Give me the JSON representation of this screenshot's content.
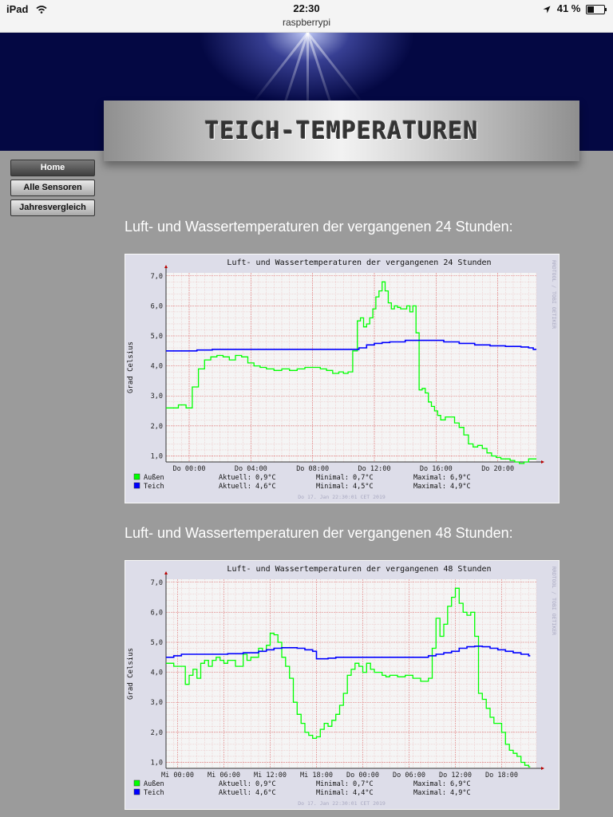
{
  "statusbar": {
    "device": "iPad",
    "time": "22:30",
    "url": "raspberrypi",
    "battery": "41 %",
    "battery_level": 0.41
  },
  "site": {
    "title": "TEICH-TEMPERATUREN"
  },
  "nav": [
    {
      "label": "Home",
      "active": true
    },
    {
      "label": "Alle Sensoren",
      "active": false
    },
    {
      "label": "Jahresvergleich",
      "active": false
    }
  ],
  "sections": [
    {
      "heading": "Luft- und Wassertemperaturen der vergangenen 24 Stunden:"
    },
    {
      "heading": "Luft- und Wassertemperaturen der vergangenen 48 Stunden:"
    }
  ],
  "chart_data": [
    {
      "type": "line",
      "title": "Luft- und Wassertemperaturen der vergangenen 24 Stunden",
      "ylabel": "Grad Celsius",
      "side_text": "RRDTOOL / TOBI OETIKER",
      "ylim": [
        0.8,
        7.1
      ],
      "yticks": [
        "1,0",
        "2,0",
        "3,0",
        "4,0",
        "5,0",
        "6,0",
        "7,0"
      ],
      "xlim": [
        22.5,
        46.5
      ],
      "xticks": [
        {
          "x": 24,
          "label": "Do 00:00"
        },
        {
          "x": 28,
          "label": "Do 04:00"
        },
        {
          "x": 32,
          "label": "Do 08:00"
        },
        {
          "x": 36,
          "label": "Do 12:00"
        },
        {
          "x": 40,
          "label": "Do 16:00"
        },
        {
          "x": 44,
          "label": "Do 20:00"
        }
      ],
      "grid": true,
      "series": [
        {
          "name": "Außen",
          "color": "#00ff00",
          "x": [
            22.5,
            23.3,
            23.6,
            23.8,
            24.2,
            24.6,
            25.0,
            25.4,
            25.8,
            26.2,
            26.6,
            27.0,
            27.4,
            27.8,
            28.2,
            28.6,
            29.0,
            29.5,
            30.0,
            30.5,
            31.0,
            31.5,
            32.0,
            32.5,
            32.9,
            33.3,
            33.7,
            34.0,
            34.3,
            34.6,
            34.9,
            35.1,
            35.3,
            35.5,
            35.7,
            35.9,
            36.1,
            36.3,
            36.5,
            36.7,
            36.9,
            37.1,
            37.3,
            37.5,
            37.7,
            37.9,
            38.1,
            38.3,
            38.5,
            38.7,
            38.9,
            39.1,
            39.3,
            39.5,
            39.7,
            39.9,
            40.1,
            40.3,
            40.6,
            40.9,
            41.2,
            41.5,
            41.8,
            42.1,
            42.4,
            42.7,
            43.0,
            43.3,
            43.6,
            43.9,
            44.2,
            44.5,
            44.8,
            45.1,
            45.4,
            45.7,
            46.0,
            46.3
          ],
          "y": [
            2.6,
            2.7,
            2.7,
            2.6,
            3.3,
            3.9,
            4.2,
            4.3,
            4.35,
            4.3,
            4.2,
            4.35,
            4.3,
            4.1,
            4.0,
            3.95,
            3.9,
            3.85,
            3.9,
            3.85,
            3.9,
            3.95,
            3.95,
            3.9,
            3.85,
            3.75,
            3.8,
            3.75,
            3.8,
            4.5,
            5.5,
            5.6,
            5.3,
            5.4,
            5.6,
            5.9,
            6.3,
            6.5,
            6.8,
            6.5,
            6.1,
            5.9,
            6.0,
            5.95,
            5.9,
            5.9,
            6.0,
            5.8,
            6.0,
            5.1,
            3.2,
            3.25,
            3.1,
            2.8,
            2.65,
            2.5,
            2.35,
            2.2,
            2.3,
            2.3,
            2.1,
            1.95,
            1.7,
            1.4,
            1.3,
            1.35,
            1.25,
            1.1,
            1.0,
            0.95,
            0.9,
            0.9,
            0.85,
            0.8,
            0.75,
            0.8,
            0.9,
            0.9
          ]
        },
        {
          "name": "Teich",
          "color": "#0000ff",
          "x": [
            22.5,
            23.5,
            24.5,
            25.5,
            27.0,
            29.0,
            31.0,
            33.0,
            34.5,
            35.0,
            35.5,
            36.0,
            36.5,
            37.0,
            38.0,
            39.0,
            40.0,
            40.5,
            41.5,
            42.5,
            43.5,
            44.5,
            45.5,
            46.0,
            46.3
          ],
          "y": [
            4.5,
            4.5,
            4.53,
            4.55,
            4.55,
            4.55,
            4.55,
            4.55,
            4.55,
            4.6,
            4.7,
            4.75,
            4.78,
            4.8,
            4.85,
            4.85,
            4.85,
            4.8,
            4.75,
            4.7,
            4.67,
            4.65,
            4.63,
            4.6,
            4.55
          ]
        }
      ],
      "legend": [
        {
          "name": "Außen",
          "aktuell": "Aktuell:  0,9°C",
          "minimal": "Minimal:  0,7°C",
          "maximal": "Maximal:  6,9°C"
        },
        {
          "name": "Teich",
          "aktuell": "Aktuell:  4,6°C",
          "minimal": "Minimal:  4,5°C",
          "maximal": "Maximal:  4,9°C"
        }
      ],
      "timestamp": "Do 17. Jan 22:30:01 CET 2019"
    },
    {
      "type": "line",
      "title": "Luft- und Wassertemperaturen der vergangenen 48 Stunden",
      "ylabel": "Grad Celsius",
      "side_text": "RRDTOOL / TOBI OETIKER",
      "ylim": [
        0.8,
        7.1
      ],
      "yticks": [
        "1,0",
        "2,0",
        "3,0",
        "4,0",
        "5,0",
        "6,0",
        "7,0"
      ],
      "xlim": [
        0,
        48
      ],
      "xticks": [
        {
          "x": 1.5,
          "label": "Mi 00:00"
        },
        {
          "x": 7.5,
          "label": "Mi 06:00"
        },
        {
          "x": 13.5,
          "label": "Mi 12:00"
        },
        {
          "x": 19.5,
          "label": "Mi 18:00"
        },
        {
          "x": 25.5,
          "label": "Do 00:00"
        },
        {
          "x": 31.5,
          "label": "Do 06:00"
        },
        {
          "x": 37.5,
          "label": "Do 12:00"
        },
        {
          "x": 43.5,
          "label": "Do 18:00"
        }
      ],
      "grid": true,
      "series": [
        {
          "name": "Außen",
          "color": "#00ff00",
          "x": [
            0,
            1,
            2,
            2.5,
            3,
            3.5,
            4,
            4.5,
            5,
            5.5,
            6,
            6.5,
            7,
            7.5,
            8,
            9,
            10,
            10.5,
            11,
            12,
            12.5,
            13,
            13.5,
            14,
            14.5,
            15,
            15.5,
            16,
            16.5,
            17,
            17.5,
            18,
            18.5,
            19,
            19.5,
            20,
            20.5,
            21,
            21.5,
            22,
            22.5,
            23,
            23.5,
            24,
            24.5,
            25,
            25.5,
            26,
            26.5,
            27,
            27.5,
            28,
            28.5,
            29,
            30,
            31,
            32,
            33,
            34,
            34.5,
            35,
            35.5,
            36,
            36.5,
            37,
            37.5,
            38,
            38.5,
            39,
            39.5,
            40,
            40.5,
            41,
            41.5,
            42,
            42.5,
            43,
            43.5,
            44,
            44.5,
            45,
            45.5,
            46,
            46.5,
            47
          ],
          "y": [
            4.3,
            4.2,
            4.2,
            3.6,
            3.9,
            4.1,
            3.8,
            4.3,
            4.4,
            4.2,
            4.4,
            4.5,
            4.4,
            4.3,
            4.4,
            4.2,
            4.6,
            4.4,
            4.5,
            4.8,
            4.7,
            4.9,
            5.3,
            5.25,
            5.0,
            4.5,
            4.2,
            3.8,
            3.0,
            2.6,
            2.3,
            2.0,
            1.9,
            1.8,
            1.85,
            2.1,
            2.3,
            2.2,
            2.4,
            2.6,
            2.9,
            3.3,
            3.9,
            4.1,
            4.3,
            4.2,
            4.0,
            4.3,
            4.1,
            4.0,
            4.0,
            3.9,
            3.85,
            3.9,
            3.85,
            3.9,
            3.8,
            3.7,
            3.8,
            4.8,
            5.8,
            5.2,
            5.6,
            6.2,
            6.5,
            6.8,
            6.3,
            6.0,
            5.9,
            6.0,
            5.2,
            3.3,
            3.1,
            2.8,
            2.5,
            2.3,
            2.3,
            2.0,
            1.6,
            1.4,
            1.3,
            1.2,
            1.0,
            0.9,
            0.85
          ]
        },
        {
          "name": "Teich",
          "color": "#0000ff",
          "x": [
            0,
            1,
            2,
            4,
            6,
            8,
            10,
            12,
            13,
            14,
            15,
            16,
            17,
            18,
            19,
            19.5,
            20,
            21,
            22,
            23,
            24,
            25,
            26,
            28,
            30,
            32,
            34,
            35,
            36,
            37,
            38,
            39,
            40,
            41,
            42,
            43,
            44,
            45,
            46,
            47
          ],
          "y": [
            4.5,
            4.55,
            4.6,
            4.6,
            4.6,
            4.62,
            4.65,
            4.7,
            4.75,
            4.8,
            4.82,
            4.82,
            4.8,
            4.75,
            4.7,
            4.45,
            4.45,
            4.47,
            4.5,
            4.5,
            4.5,
            4.5,
            4.5,
            4.5,
            4.5,
            4.5,
            4.55,
            4.6,
            4.65,
            4.7,
            4.8,
            4.85,
            4.87,
            4.85,
            4.8,
            4.75,
            4.7,
            4.65,
            4.6,
            4.55
          ]
        }
      ],
      "legend": [
        {
          "name": "Außen",
          "aktuell": "Aktuell:  0,9°C",
          "minimal": "Minimal:  0,7°C",
          "maximal": "Maximal:  6,9°C"
        },
        {
          "name": "Teich",
          "aktuell": "Aktuell:  4,6°C",
          "minimal": "Minimal:  4,4°C",
          "maximal": "Maximal:  4,9°C"
        }
      ],
      "timestamp": "Do 17. Jan 22:30:01 CET 2019"
    }
  ]
}
